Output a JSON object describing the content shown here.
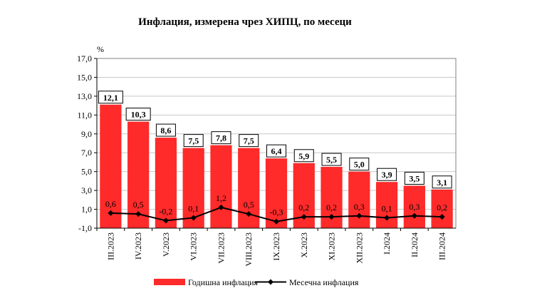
{
  "chart_data": {
    "type": "bar",
    "title": "Инфлация, измерена чрез ХИПЦ, по месеци",
    "ylabel": "%",
    "ylim": [
      -1.0,
      17.0
    ],
    "yticks": [
      "-1,0",
      "1,0",
      "3,0",
      "5,0",
      "7,0",
      "9,0",
      "11,0",
      "13,0",
      "15,0",
      "17,0"
    ],
    "ytick_values": [
      -1,
      1,
      3,
      5,
      7,
      9,
      11,
      13,
      15,
      17
    ],
    "categories": [
      "III.2023",
      "IV.2023",
      "V.2023",
      "VI.2023",
      "VII.2023",
      "VIII.2023",
      "IX.2023",
      "X.2023",
      "XI.2023",
      "XII.2023",
      "I.2024",
      "II.2024",
      "III.2024"
    ],
    "grid": true,
    "legend_position": "bottom",
    "colors": {
      "bar": "#ff2a2a",
      "line": "#000000"
    },
    "series": [
      {
        "name": "Годишна инфлация",
        "kind": "bar",
        "values": [
          12.1,
          10.3,
          8.6,
          7.5,
          7.8,
          7.5,
          6.4,
          5.9,
          5.5,
          5.0,
          3.9,
          3.5,
          3.1
        ],
        "labels": [
          "12,1",
          "10,3",
          "8,6",
          "7,5",
          "7,8",
          "7,5",
          "6,4",
          "5,9",
          "5,5",
          "5,0",
          "3,9",
          "3,5",
          "3,1"
        ]
      },
      {
        "name": "Месечна инфлация",
        "kind": "line",
        "values": [
          0.6,
          0.5,
          -0.2,
          0.1,
          1.2,
          0.5,
          -0.3,
          0.2,
          0.2,
          0.3,
          0.1,
          0.3,
          0.2
        ],
        "labels": [
          "0,6",
          "0,5",
          "-0,2",
          "0,1",
          "1,2",
          "0,5",
          "-0,3",
          "0,2",
          "0,2",
          "0,3",
          "0,1",
          "0,3",
          "0,2"
        ]
      }
    ]
  }
}
